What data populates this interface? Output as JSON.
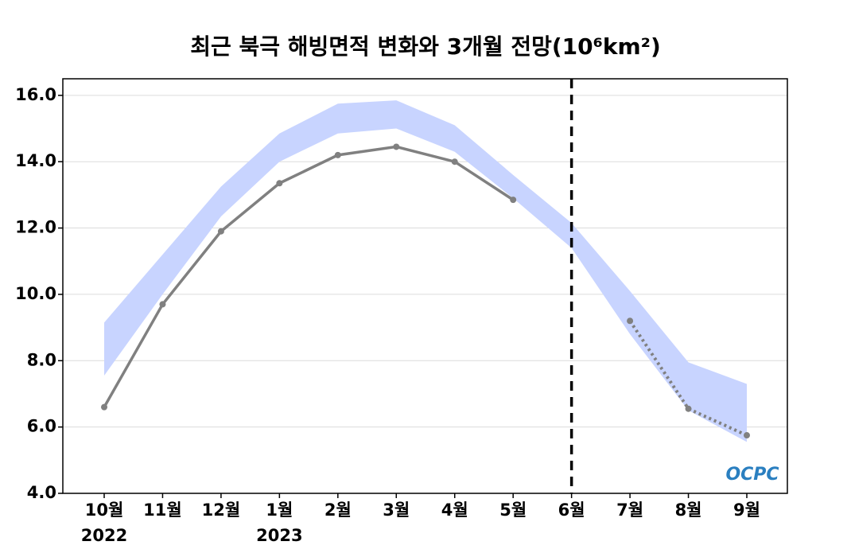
{
  "chart_data": {
    "type": "line",
    "title": "최근 북극 해빙면적 변화와 3개월 전망(10⁶km²)",
    "categories": [
      "10월",
      "11월",
      "12월",
      "1월",
      "2월",
      "3월",
      "4월",
      "5월",
      "6월",
      "7월",
      "8월",
      "9월"
    ],
    "year_labels": [
      "2022",
      null,
      null,
      "2023",
      null,
      null,
      null,
      null,
      null,
      null,
      null,
      null
    ],
    "series": [
      {
        "color": "#808080",
        "style": "solid",
        "values": [
          6.6,
          9.7,
          11.9,
          13.35,
          14.2,
          14.45,
          14.0,
          12.85,
          null,
          null,
          null,
          null
        ]
      },
      {
        "color": "#808080",
        "style": "dotted",
        "values": [
          null,
          null,
          null,
          null,
          null,
          null,
          null,
          null,
          null,
          9.2,
          6.55,
          5.75
        ]
      }
    ],
    "band": {
      "color": "#c8d4ff",
      "upper": [
        9.15,
        11.2,
        13.25,
        14.85,
        15.75,
        15.85,
        15.1,
        13.6,
        12.15,
        10.1,
        7.95,
        7.3
      ],
      "lower": [
        7.55,
        10.0,
        12.35,
        14.0,
        14.85,
        15.0,
        14.3,
        12.9,
        11.4,
        8.8,
        6.5,
        5.55
      ]
    },
    "vline_index": 8,
    "ylim": [
      4,
      16.5
    ],
    "yticks": [
      {
        "value": 4,
        "label": "4.0"
      },
      {
        "value": 6,
        "label": "6.0"
      },
      {
        "value": 8,
        "label": "8.0"
      },
      {
        "value": 10,
        "label": "10.0"
      },
      {
        "value": 12,
        "label": "12.0"
      },
      {
        "value": 14,
        "label": "14.0"
      },
      {
        "value": 16,
        "label": "16.0"
      }
    ],
    "grid": true,
    "logo": "OCPC"
  }
}
